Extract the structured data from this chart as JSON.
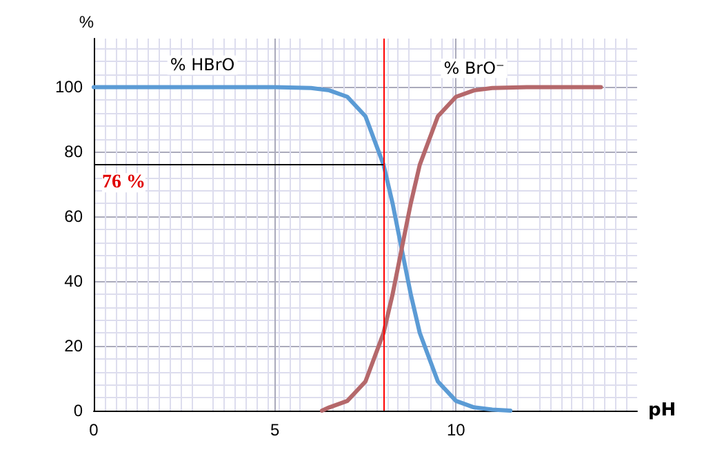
{
  "chart_data": {
    "type": "line",
    "xlabel": "pH",
    "ylabel": "%",
    "series": [
      {
        "name": "% HBrO",
        "color": "#5b9bd5",
        "x": [
          0,
          1,
          2,
          3,
          4,
          5,
          6,
          6.5,
          7,
          7.5,
          8,
          8.25,
          8.5,
          8.75,
          9,
          9.5,
          10,
          10.5,
          11,
          11.5
        ],
        "values": [
          100,
          100,
          100,
          100,
          100,
          100,
          99.7,
          99,
          97,
          91,
          76,
          64,
          50,
          36,
          24,
          9,
          3,
          1,
          0.3,
          0
        ]
      },
      {
        "name": "% BrO⁻",
        "color": "#b5686b",
        "x": [
          6.3,
          6.5,
          7,
          7.5,
          8,
          8.25,
          8.5,
          8.75,
          9,
          9.5,
          10,
          10.5,
          11,
          12,
          13,
          14
        ],
        "values": [
          0,
          1,
          3,
          9,
          24,
          36,
          50,
          64,
          76,
          91,
          97,
          99,
          99.7,
          100,
          100,
          100
        ]
      }
    ],
    "xlim": [
      0,
      15
    ],
    "xticks": [
      0,
      5,
      10
    ],
    "ylim": [
      0,
      115
    ],
    "yticks": [
      0,
      20,
      40,
      60,
      80,
      100
    ],
    "grid": true,
    "marker": "none",
    "line_style": "solid",
    "ref_lines": [
      {
        "axis": "y",
        "value": 76,
        "color": "#000000"
      },
      {
        "axis": "x",
        "value": 8,
        "color": "#ff0000"
      }
    ],
    "annotations": [
      "76 %"
    ]
  }
}
